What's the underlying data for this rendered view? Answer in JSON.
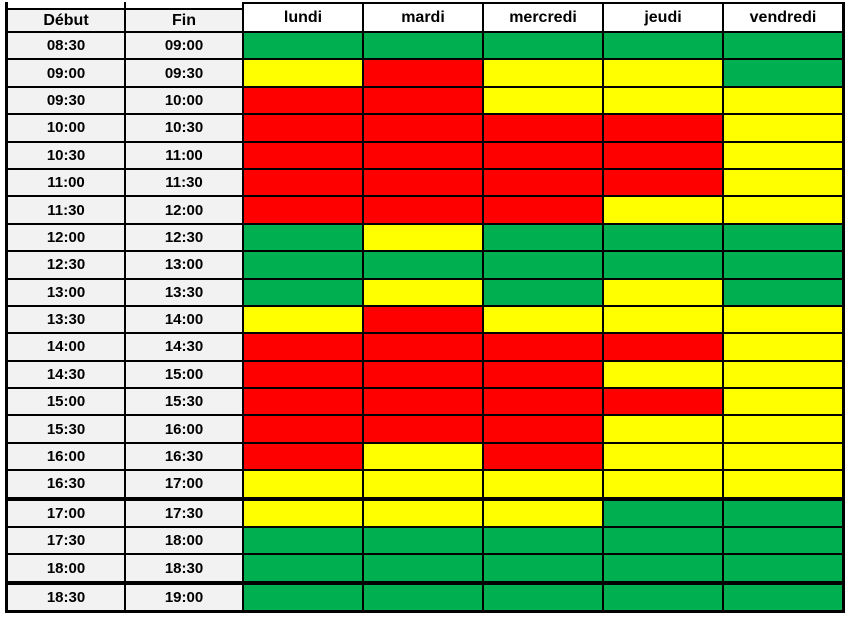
{
  "chart_data": {
    "type": "heatmap",
    "title": "",
    "row_header_labels": [
      "Début",
      "Fin"
    ],
    "columns": [
      "lundi",
      "mardi",
      "mercredi",
      "jeudi",
      "vendredi"
    ],
    "colors": {
      "green": "#00B050",
      "yellow": "#FFFF00",
      "red": "#FF0000",
      "time_cell_bg": "#F2F2F2",
      "day_header_bg": "#FFFFFF",
      "border": "#000000"
    },
    "rows": [
      {
        "debut": "08:30",
        "fin": "09:00",
        "cells": [
          "green",
          "green",
          "green",
          "green",
          "green"
        ]
      },
      {
        "debut": "09:00",
        "fin": "09:30",
        "cells": [
          "yellow",
          "red",
          "yellow",
          "yellow",
          "green"
        ]
      },
      {
        "debut": "09:30",
        "fin": "10:00",
        "cells": [
          "red",
          "red",
          "yellow",
          "yellow",
          "yellow"
        ]
      },
      {
        "debut": "10:00",
        "fin": "10:30",
        "cells": [
          "red",
          "red",
          "red",
          "red",
          "yellow"
        ]
      },
      {
        "debut": "10:30",
        "fin": "11:00",
        "cells": [
          "red",
          "red",
          "red",
          "red",
          "yellow"
        ]
      },
      {
        "debut": "11:00",
        "fin": "11:30",
        "cells": [
          "red",
          "red",
          "red",
          "red",
          "yellow"
        ]
      },
      {
        "debut": "11:30",
        "fin": "12:00",
        "cells": [
          "red",
          "red",
          "red",
          "yellow",
          "yellow"
        ]
      },
      {
        "debut": "12:00",
        "fin": "12:30",
        "cells": [
          "green",
          "yellow",
          "green",
          "green",
          "green"
        ]
      },
      {
        "debut": "12:30",
        "fin": "13:00",
        "cells": [
          "green",
          "green",
          "green",
          "green",
          "green"
        ]
      },
      {
        "debut": "13:00",
        "fin": "13:30",
        "cells": [
          "green",
          "yellow",
          "green",
          "yellow",
          "green"
        ]
      },
      {
        "debut": "13:30",
        "fin": "14:00",
        "cells": [
          "yellow",
          "red",
          "yellow",
          "yellow",
          "yellow"
        ]
      },
      {
        "debut": "14:00",
        "fin": "14:30",
        "cells": [
          "red",
          "red",
          "red",
          "red",
          "yellow"
        ]
      },
      {
        "debut": "14:30",
        "fin": "15:00",
        "cells": [
          "red",
          "red",
          "red",
          "yellow",
          "yellow"
        ]
      },
      {
        "debut": "15:00",
        "fin": "15:30",
        "cells": [
          "red",
          "red",
          "red",
          "red",
          "yellow"
        ]
      },
      {
        "debut": "15:30",
        "fin": "16:00",
        "cells": [
          "red",
          "red",
          "red",
          "yellow",
          "yellow"
        ]
      },
      {
        "debut": "16:00",
        "fin": "16:30",
        "cells": [
          "red",
          "yellow",
          "red",
          "yellow",
          "yellow"
        ]
      },
      {
        "debut": "16:30",
        "fin": "17:00",
        "cells": [
          "yellow",
          "yellow",
          "yellow",
          "yellow",
          "yellow"
        ],
        "thick_border_below": true
      },
      {
        "debut": "17:00",
        "fin": "17:30",
        "cells": [
          "yellow",
          "yellow",
          "yellow",
          "green",
          "green"
        ]
      },
      {
        "debut": "17:30",
        "fin": "18:00",
        "cells": [
          "green",
          "green",
          "green",
          "green",
          "green"
        ]
      },
      {
        "debut": "18:00",
        "fin": "18:30",
        "cells": [
          "green",
          "green",
          "green",
          "green",
          "green"
        ],
        "thick_border_below": true
      },
      {
        "debut": "18:30",
        "fin": "19:00",
        "cells": [
          "green",
          "green",
          "green",
          "green",
          "green"
        ]
      }
    ]
  }
}
